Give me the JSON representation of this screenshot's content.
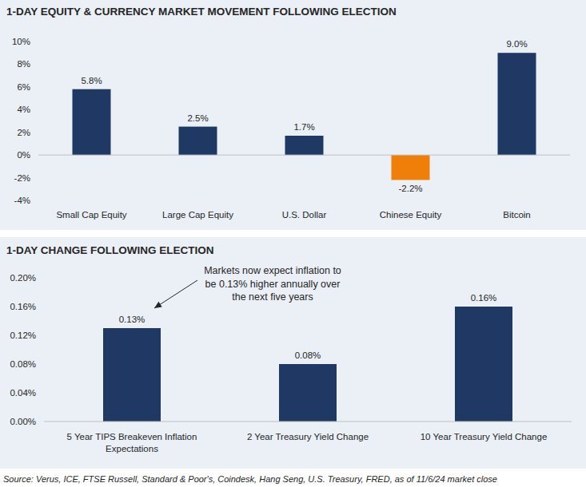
{
  "chart_data": [
    {
      "type": "bar",
      "title": "1-DAY EQUITY & CURRENCY MARKET MOVEMENT FOLLOWING ELECTION",
      "categories": [
        "Small Cap Equity",
        "Large Cap Equity",
        "U.S. Dollar",
        "Chinese Equity",
        "Bitcoin"
      ],
      "values": [
        5.8,
        2.5,
        1.7,
        -2.2,
        9.0
      ],
      "value_labels": [
        "5.8%",
        "2.5%",
        "1.7%",
        "-2.2%",
        "9.0%"
      ],
      "colors": [
        "#1f3864",
        "#1f3864",
        "#1f3864",
        "#f07f09",
        "#1f3864"
      ],
      "ylim": [
        -4,
        10
      ],
      "yticks": [
        {
          "value": -4,
          "label": "-4%"
        },
        {
          "value": -2,
          "label": "-2%"
        },
        {
          "value": 0,
          "label": "0%"
        },
        {
          "value": 2,
          "label": "2%"
        },
        {
          "value": 4,
          "label": "4%"
        },
        {
          "value": 6,
          "label": "6%"
        },
        {
          "value": 8,
          "label": "8%"
        },
        {
          "value": 10,
          "label": "10%"
        }
      ],
      "grid": false,
      "data_labels": true
    },
    {
      "type": "bar",
      "title": "1-DAY CHANGE FOLLOWING ELECTION",
      "categories": [
        "5 Year TIPS Breakeven Inflation Expectations",
        "2 Year Treasury Yield Change",
        "10 Year Treasury Yield Change"
      ],
      "values": [
        0.13,
        0.08,
        0.16
      ],
      "value_labels": [
        "0.13%",
        "0.08%",
        "0.16%"
      ],
      "color": "#1f3864",
      "ylim": [
        0,
        0.2
      ],
      "yticks": [
        {
          "value": 0,
          "label": "0.00%"
        },
        {
          "value": 0.04,
          "label": "0.04%"
        },
        {
          "value": 0.08,
          "label": "0.08%"
        },
        {
          "value": 0.12,
          "label": "0.12%"
        },
        {
          "value": 0.16,
          "label": "0.16%"
        },
        {
          "value": 0.2,
          "label": "0.20%"
        }
      ],
      "grid": false,
      "data_labels": true,
      "annotation": "Markets now expect inflation to be 0.13% higher annually over the next five years"
    }
  ],
  "source": "Source: Verus, ICE, FTSE Russell, Standard & Poor's, Coindesk, Hang Seng, U.S. Treasury, FRED, as of 11/6/24 market close"
}
